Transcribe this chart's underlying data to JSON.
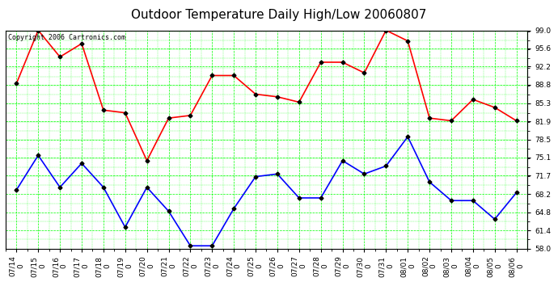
{
  "title": "Outdoor Temperature Daily High/Low 20060807",
  "copyright_text": "Copyright 2006 Cartronics.com",
  "dates": [
    "07/14",
    "07/15",
    "07/16",
    "07/17",
    "07/18",
    "07/19",
    "07/20",
    "07/21",
    "07/22",
    "07/23",
    "07/24",
    "07/25",
    "07/26",
    "07/27",
    "07/28",
    "07/29",
    "07/30",
    "07/31",
    "08/01",
    "08/02",
    "08/03",
    "08/04",
    "08/05",
    "08/06"
  ],
  "high_temps": [
    89.0,
    99.0,
    94.0,
    96.5,
    84.0,
    83.5,
    74.5,
    82.5,
    83.0,
    90.5,
    90.5,
    87.0,
    86.5,
    85.5,
    93.0,
    93.0,
    91.0,
    99.0,
    97.0,
    82.5,
    82.0,
    86.0,
    84.5,
    82.0
  ],
  "low_temps": [
    69.0,
    75.5,
    69.5,
    74.0,
    69.5,
    62.0,
    69.5,
    65.0,
    58.5,
    58.5,
    65.5,
    71.5,
    72.0,
    67.5,
    67.5,
    74.5,
    72.0,
    73.5,
    79.0,
    70.5,
    67.0,
    67.0,
    63.5,
    68.5
  ],
  "high_color": "#FF0000",
  "low_color": "#0000FF",
  "bg_color": "#FFFFFF",
  "plot_bg_color": "#FFFFFF",
  "grid_color": "#00FF00",
  "marker": "D",
  "marker_color": "#000000",
  "marker_size": 2.5,
  "line_width": 1.2,
  "ylim": [
    58.0,
    99.0
  ],
  "yticks": [
    58.0,
    61.4,
    64.8,
    68.2,
    71.7,
    75.1,
    78.5,
    81.9,
    85.3,
    88.8,
    92.2,
    95.6,
    99.0
  ],
  "title_fontsize": 11,
  "tick_fontsize": 6.5,
  "copyright_fontsize": 6
}
